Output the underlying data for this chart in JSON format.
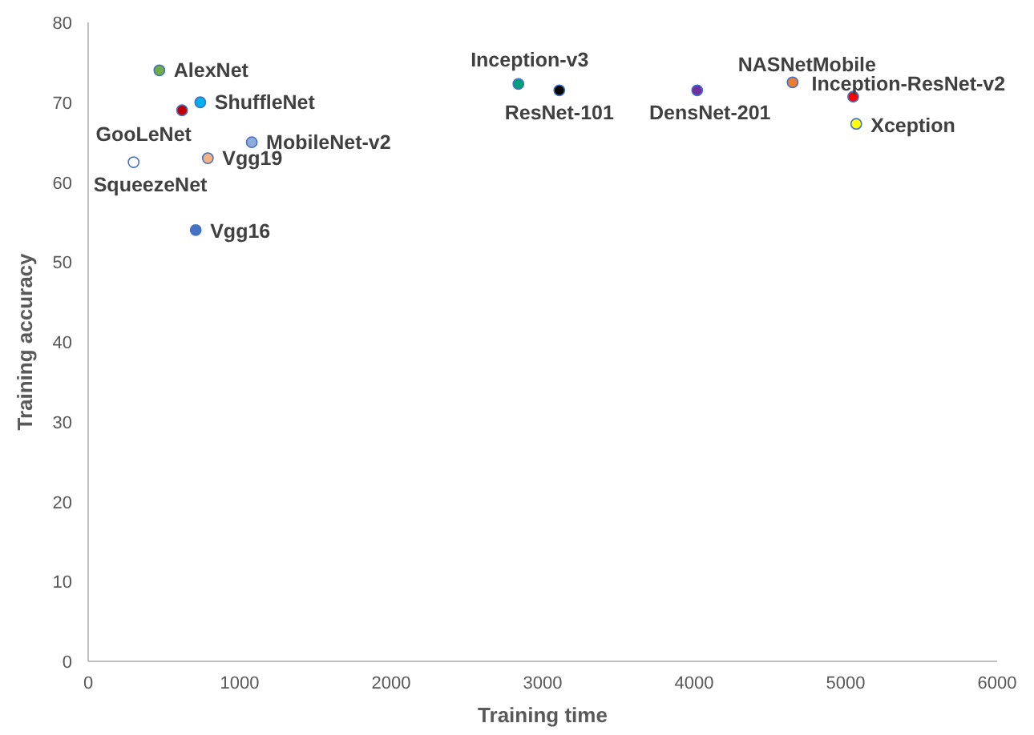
{
  "chart_data": {
    "type": "scatter",
    "xlabel": "Training time",
    "ylabel": "Training accuracy",
    "xlim": [
      0,
      6000
    ],
    "xticks": [
      0,
      1000,
      2000,
      3000,
      4000,
      5000,
      6000
    ],
    "ylim": [
      0,
      80
    ],
    "yticks": [
      0,
      10,
      20,
      30,
      40,
      50,
      60,
      70,
      80
    ],
    "marker": "circle",
    "grid": false,
    "series": [
      {
        "name": "AlexNet",
        "color": "#70ad47",
        "x": [
          470
        ],
        "values": [
          74
        ]
      },
      {
        "name": "ShuffleNet",
        "color": "#00b0f0",
        "x": [
          740
        ],
        "values": [
          70
        ]
      },
      {
        "name": "GooLeNet",
        "color": "#c00000",
        "x": [
          620
        ],
        "values": [
          69
        ]
      },
      {
        "name": "MobileNet-v2",
        "color": "#8faadc",
        "x": [
          1080
        ],
        "values": [
          65
        ]
      },
      {
        "name": "Vgg19",
        "color": "#f4b183",
        "x": [
          790
        ],
        "values": [
          63
        ]
      },
      {
        "name": "SqueezeNet",
        "color": "#ffffff",
        "x": [
          300
        ],
        "values": [
          62.5
        ]
      },
      {
        "name": "Vgg16",
        "color": "#4472c4",
        "x": [
          710
        ],
        "values": [
          54
        ]
      },
      {
        "name": "Inception-v3",
        "color": "#00a07a",
        "x": [
          2840
        ],
        "values": [
          72.3
        ]
      },
      {
        "name": "ResNet-101",
        "color": "#000000",
        "x": [
          3110
        ],
        "values": [
          71.5
        ]
      },
      {
        "name": "DensNet-201",
        "color": "#7030a0",
        "x": [
          4020
        ],
        "values": [
          71.5
        ]
      },
      {
        "name": "NASNetMobile",
        "color": "#ed7d31",
        "x": [
          4650
        ],
        "values": [
          72.5
        ]
      },
      {
        "name": "Inception-ResNet-v2",
        "color": "#ff0000",
        "x": [
          5050
        ],
        "values": [
          70.7
        ]
      },
      {
        "name": "Xception",
        "color": "#ffff00",
        "x": [
          5070
        ],
        "values": [
          67.3
        ]
      }
    ]
  }
}
